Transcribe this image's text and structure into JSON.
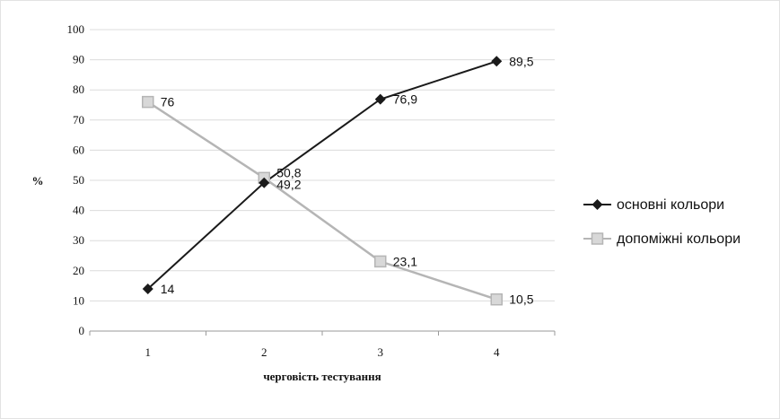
{
  "chart_data": {
    "type": "line",
    "title": "",
    "xlabel": "черговість тестування",
    "ylabel": "%",
    "x": [
      1,
      2,
      3,
      4
    ],
    "x_tick_labels": [
      "1",
      "2",
      "3",
      "4"
    ],
    "ylim": [
      0,
      100
    ],
    "y_ticks": [
      0,
      10,
      20,
      30,
      40,
      50,
      60,
      70,
      80,
      90,
      100
    ],
    "grid": true,
    "legend_position": "right",
    "series": [
      {
        "name": "основні кольори",
        "values": [
          14,
          49.2,
          76.9,
          89.5
        ],
        "labels": [
          "14",
          "49,2",
          "76,9",
          "89,5"
        ],
        "color": "#1a1a1a",
        "marker": "diamond"
      },
      {
        "name": "допоміжні кольори",
        "values": [
          76,
          50.8,
          23.1,
          10.5
        ],
        "labels": [
          "76",
          "50,8",
          "23,1",
          "10,5"
        ],
        "color": "#b5b5b5",
        "marker": "square"
      }
    ]
  }
}
